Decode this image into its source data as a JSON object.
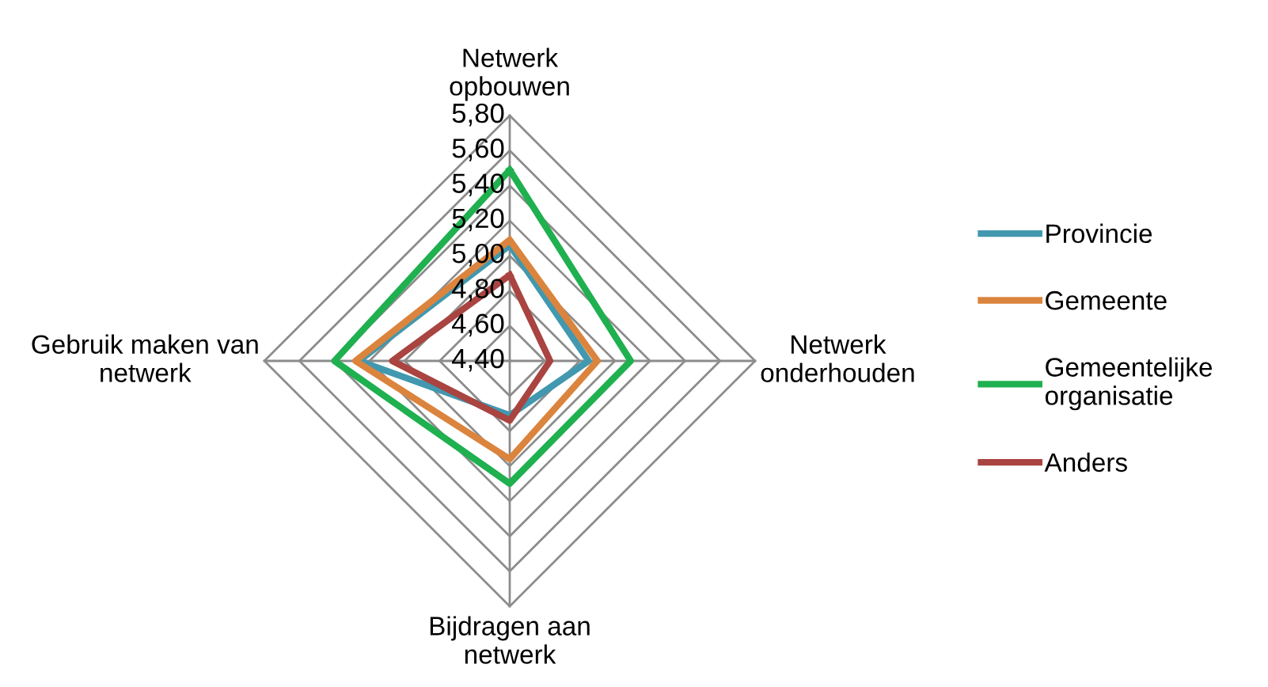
{
  "chart_data": {
    "type": "radar",
    "categories": [
      "Netwerk opbouwen",
      "Netwerk onderhouden",
      "Bijdragen aan netwerk",
      "Gebruik maken van netwerk"
    ],
    "ylim": [
      4.4,
      5.8
    ],
    "yticks": [
      {
        "value": 4.4,
        "label": "4,40"
      },
      {
        "value": 4.6,
        "label": "4,60"
      },
      {
        "value": 4.8,
        "label": "4,80"
      },
      {
        "value": 5.0,
        "label": "5,00"
      },
      {
        "value": 5.2,
        "label": "5,20"
      },
      {
        "value": 5.4,
        "label": "5,40"
      },
      {
        "value": 5.6,
        "label": "5,60"
      },
      {
        "value": 5.8,
        "label": "5,80"
      }
    ],
    "series": [
      {
        "name": "Provincie",
        "color": "#4198af",
        "values": [
          5.06,
          4.85,
          4.71,
          5.26
        ]
      },
      {
        "name": "Gemeente",
        "color": "#db843d",
        "values": [
          5.09,
          4.9,
          4.96,
          5.28
        ]
      },
      {
        "name": "Gemeentelijke organisatie",
        "color": "#1fb04f",
        "values": [
          5.49,
          5.09,
          5.1,
          5.4
        ]
      },
      {
        "name": "Anders",
        "color": "#a94441",
        "values": [
          4.89,
          4.63,
          4.74,
          5.07
        ]
      }
    ],
    "grid": true,
    "legend": "right",
    "marker": "none",
    "line_style": "solid"
  }
}
